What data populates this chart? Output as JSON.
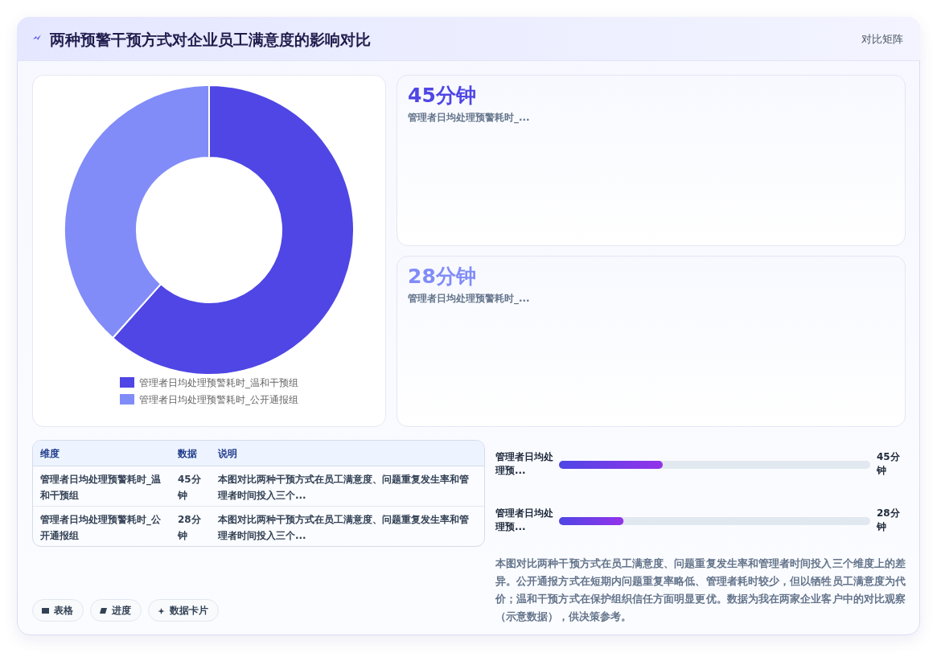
{
  "chart_data": [
    {
      "type": "other",
      "title": "两种预警干预方式对企业员工满意度的影响对比",
      "annotations": [
        "对比矩阵"
      ]
    },
    {
      "type": "donut",
      "categories": [
        "管理者日均处理预警耗时_温和干预组",
        "管理者日均处理预警耗时_公开通报组"
      ],
      "values": [
        61.6,
        38.4
      ],
      "colors": [
        "#4f46e5",
        "#818cf8"
      ],
      "legend": "bottom"
    },
    {
      "type": "other",
      "annotations": [
        "45分钟",
        "管理者日均处理预警耗时_..."
      ]
    },
    {
      "type": "other",
      "annotations": [
        "28分钟",
        "管理者日均处理预警耗时_..."
      ]
    },
    {
      "type": "other",
      "annotations": [
        "维度",
        "数据",
        "说明",
        "管理者日均处理预警耗时_温和干预组",
        "45分钟",
        "本图对比两种干预方式在员工满意度、问题重复发生率和管理者时间投入三个...",
        "管理者日均处理预警耗时_公开通报组",
        "28分钟",
        "本图对比两种干预方式在员工满意度、问题重复发生率和管理者时间投入三个..."
      ]
    },
    {
      "type": "bar",
      "orientation": "horizontal",
      "categories": [
        "管理者日均处理预...",
        "管理者日均处理预..."
      ],
      "values": [
        45,
        28
      ],
      "value_labels": [
        "45分钟",
        "28分钟"
      ],
      "color": "#4f46e5",
      "xlim": [
        0,
        135
      ],
      "tick_labels": "y",
      "annotations": [
        "本图对比两种干预方式在员工满意度、问题重复发生率和管理者时间投入三个维度上的差异。公开通报方式在短期内问题重复率略低、管理者耗时较少，但以牺牲员工满意度为代价；温和干预方式在保护组织信任方面明显更优。数据为我在两家企业客户中的对比观察（示意数据），供决策参考。"
      ]
    },
    {
      "type": "other",
      "annotations": [
        "表格",
        "进度",
        "数据卡片"
      ]
    }
  ]
}
